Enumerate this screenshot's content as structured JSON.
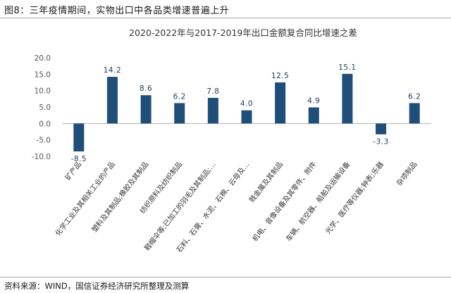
{
  "figure": {
    "caption": "图8：三年疫情期间，实物出口中各品类增速普遍上升",
    "source": "资料来源：WIND，国信证券经济研究所整理及测算"
  },
  "chart_data": {
    "type": "bar",
    "title": "2020-2022年与2017-2019年出口金额复合同比增速之差",
    "xlabel": "",
    "ylabel": "",
    "ylim": [
      -10,
      20
    ],
    "yticks": [
      -10,
      -5,
      0,
      5,
      10,
      15,
      20
    ],
    "ytick_labels": [
      "-10.0",
      "-5.0",
      "0.0",
      "5.0",
      "10.0",
      "15.0",
      "20.0"
    ],
    "grid": false,
    "categories": [
      "矿产品",
      "化学工业及其相关工业的产品",
      "塑料及其制品;橡胶及其制品",
      "纺织原料及纺织制品",
      "鞋帽伞等;已加工的羽毛及其制品;…",
      "石料、石膏、水泥、石棉、云母及…",
      "贱金属及其制品",
      "机电、音像设备及其零件、附件",
      "车辆、航空器、船舶及运输设备",
      "光学、医疗等仪器;钟表;乐器",
      "杂项制品"
    ],
    "values": [
      -8.5,
      14.2,
      8.6,
      6.2,
      7.8,
      4.0,
      12.5,
      4.9,
      15.1,
      -3.3,
      6.2
    ],
    "value_labels": [
      "-8.5",
      "14.2",
      "8.6",
      "6.2",
      "7.8",
      "4.0",
      "12.5",
      "4.9",
      "15.1",
      "-3.3",
      "6.2"
    ],
    "bar_color": "#1f4e79"
  }
}
